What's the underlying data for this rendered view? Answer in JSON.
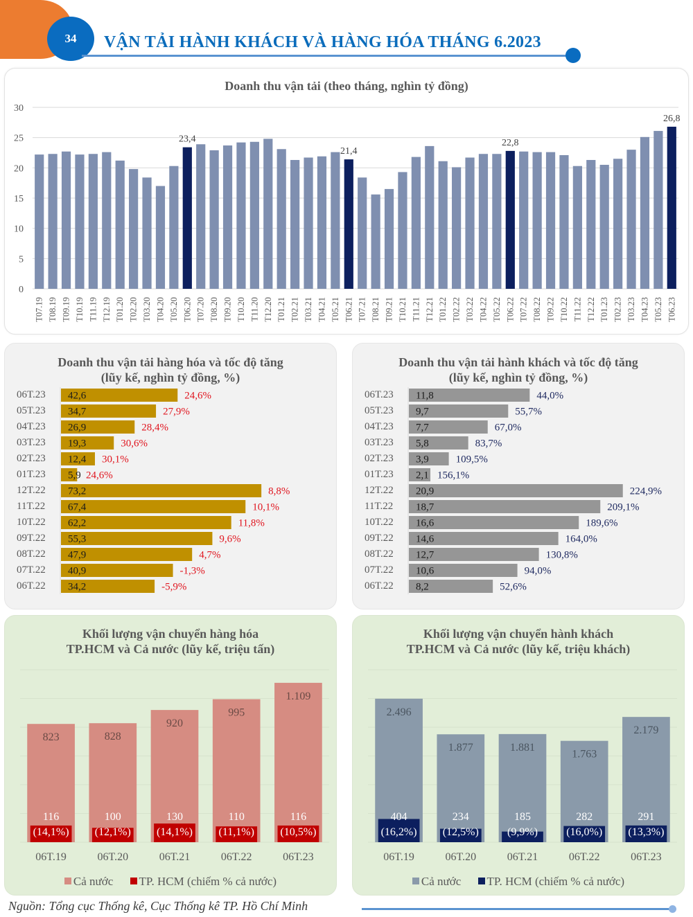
{
  "header": {
    "page_number": "34",
    "title": "VẬN TẢI HÀNH KHÁCH VÀ HÀNG HÓA THÁNG 6.2023"
  },
  "colors": {
    "accent_blue": "#0a6cc0",
    "accent_orange": "#ec7c30",
    "monthly_bar": "#7f8fb0",
    "monthly_highlight": "#0c1f5e",
    "freight_bar": "#c09000",
    "freight_growth": "#e0141e",
    "passenger_bar": "#969696",
    "passenger_growth": "#1f2a60",
    "national_freight": "#d68c82",
    "hcm_freight": "#c00000",
    "national_passenger": "#8a9aaa",
    "hcm_passenger": "#0c1f5e"
  },
  "chart_data": [
    {
      "id": "monthly_revenue",
      "type": "bar",
      "title": "Doanh thu vận tải (theo tháng, nghìn tỷ đồng)",
      "xlabel": "",
      "ylabel": "",
      "ylim": [
        0,
        30
      ],
      "yticks": [
        0,
        5,
        10,
        15,
        20,
        25,
        30
      ],
      "grid": true,
      "categories": [
        "T07.19",
        "T08.19",
        "T09.19",
        "T10.19",
        "T11.19",
        "T12.19",
        "T01.20",
        "T02.20",
        "T03.20",
        "T04.20",
        "T05.20",
        "T06.20",
        "T07.20",
        "T08.20",
        "T09.20",
        "T10.20",
        "T11.20",
        "T12.20",
        "T01.21",
        "T02.21",
        "T03.21",
        "T04.21",
        "T05.21",
        "T06.21",
        "T07.21",
        "T08.21",
        "T09.21",
        "T10.21",
        "T11.21",
        "T12.21",
        "T01.22",
        "T02.22",
        "T03.22",
        "T04.22",
        "T05.22",
        "T06.22",
        "T07.22",
        "T08.22",
        "T09.22",
        "T10.22",
        "T11.22",
        "T12.22",
        "T01.23",
        "T02.23",
        "T03.23",
        "T04.23",
        "T05.23",
        "T06.23"
      ],
      "values": [
        22.2,
        22.3,
        22.7,
        22.2,
        22.3,
        22.6,
        21.2,
        19.8,
        18.4,
        17.0,
        20.3,
        23.4,
        23.9,
        22.9,
        23.7,
        24.2,
        24.3,
        24.8,
        23.1,
        21.3,
        21.7,
        21.9,
        22.6,
        21.4,
        18.4,
        15.6,
        16.5,
        19.3,
        21.8,
        23.6,
        21.1,
        20.1,
        21.7,
        22.3,
        22.3,
        22.8,
        22.7,
        22.6,
        22.6,
        22.1,
        20.3,
        21.3,
        20.5,
        21.5,
        23.0,
        25.1,
        26.1,
        26.8
      ],
      "highlighted": [
        "T06.20",
        "T06.21",
        "T06.22",
        "T06.23"
      ],
      "data_labels": {
        "T06.20": "23,4",
        "T06.21": "21,4",
        "T06.22": "22,8",
        "T06.23": "26,8"
      }
    },
    {
      "id": "freight_revenue",
      "type": "bar",
      "orientation": "horizontal",
      "title": "Doanh thu vận tải hàng hóa và tốc độ tăng",
      "subtitle": "(lũy kế, nghìn tỷ đồng, %)",
      "categories": [
        "06T.23",
        "05T.23",
        "04T.23",
        "03T.23",
        "02T.23",
        "01T.23",
        "12T.22",
        "11T.22",
        "10T.22",
        "09T.22",
        "08T.22",
        "07T.22",
        "06T.22"
      ],
      "values": [
        42.6,
        34.7,
        26.9,
        19.3,
        12.4,
        5.9,
        73.2,
        67.4,
        62.2,
        55.3,
        47.9,
        40.9,
        34.2
      ],
      "value_labels": [
        "42,6",
        "34,7",
        "26,9",
        "19,3",
        "12,4",
        "5,9",
        "73,2",
        "67,4",
        "62,2",
        "55,3",
        "47,9",
        "40,9",
        "34,2"
      ],
      "growth_labels": [
        "24,6%",
        "27,9%",
        "28,4%",
        "30,6%",
        "30,1%",
        "24,6%",
        "8,8%",
        "10,1%",
        "11,8%",
        "9,6%",
        "4,7%",
        "-1,3%",
        "-5,9%"
      ],
      "xlim": [
        0,
        80
      ]
    },
    {
      "id": "passenger_revenue",
      "type": "bar",
      "orientation": "horizontal",
      "title": "Doanh thu vận tải hành khách và tốc độ tăng",
      "subtitle": "(lũy kế, nghìn tỷ đồng, %)",
      "categories": [
        "06T.23",
        "05T.23",
        "04T.23",
        "03T.23",
        "02T.23",
        "01T.23",
        "12T.22",
        "11T.22",
        "10T.22",
        "09T.22",
        "08T.22",
        "07T.22",
        "06T.22"
      ],
      "values": [
        11.8,
        9.7,
        7.7,
        5.8,
        3.9,
        2.1,
        20.9,
        18.7,
        16.6,
        14.6,
        12.7,
        10.6,
        8.2
      ],
      "value_labels": [
        "11,8",
        "9,7",
        "7,7",
        "5,8",
        "3,9",
        "2,1",
        "20,9",
        "18,7",
        "16,6",
        "14,6",
        "12,7",
        "10,6",
        "8,2"
      ],
      "growth_labels": [
        "44,0%",
        "55,7%",
        "67,0%",
        "83,7%",
        "109,5%",
        "156,1%",
        "224,9%",
        "209,1%",
        "189,6%",
        "164,0%",
        "130,8%",
        "94,0%",
        "52,6%"
      ],
      "xlim": [
        0,
        22
      ]
    },
    {
      "id": "freight_volume",
      "type": "bar",
      "title": "Khối lượng vận chuyển hàng hóa",
      "subtitle": "TP.HCM và Cả nước (lũy kế, triệu tấn)",
      "categories": [
        "06T.19",
        "06T.20",
        "06T.21",
        "06T.22",
        "06T.23"
      ],
      "ylim": [
        0,
        1200
      ],
      "grid": true,
      "legend": "bottom",
      "series": [
        {
          "name": "Cả nước",
          "values": [
            823,
            828,
            920,
            995,
            1109
          ],
          "labels": [
            "823",
            "828",
            "920",
            "995",
            "1.109"
          ]
        },
        {
          "name": "TP. HCM (chiếm % cả nước)",
          "values": [
            116,
            100,
            130,
            110,
            116
          ],
          "labels": [
            "116",
            "100",
            "130",
            "110",
            "116"
          ],
          "share_labels": [
            "(14,1%)",
            "(12,1%)",
            "(14,1%)",
            "(11,1%)",
            "(10,5%)"
          ]
        }
      ]
    },
    {
      "id": "passenger_volume",
      "type": "bar",
      "title": "Khối lượng vận chuyển hành khách",
      "subtitle": "TP.HCM và Cả nước (lũy kế, triệu khách)",
      "categories": [
        "06T.19",
        "06T.20",
        "06T.21",
        "06T.22",
        "06T.23"
      ],
      "ylim": [
        0,
        3000
      ],
      "grid": true,
      "legend": "bottom",
      "series": [
        {
          "name": "Cả nước",
          "values": [
            2496,
            1877,
            1881,
            1763,
            2179
          ],
          "labels": [
            "2.496",
            "1.877",
            "1.881",
            "1.763",
            "2.179"
          ]
        },
        {
          "name": "TP. HCM (chiếm % cả nước)",
          "values": [
            404,
            234,
            185,
            282,
            291
          ],
          "labels": [
            "404",
            "234",
            "185",
            "282",
            "291"
          ],
          "share_labels": [
            "(16,2%)",
            "(12,5%)",
            "(9,9%)",
            "(16,0%)",
            "(13,3%)"
          ]
        }
      ]
    }
  ],
  "footer": {
    "source": "Nguồn: Tổng cục Thống kê, Cục Thống kê TP. Hồ Chí Minh"
  }
}
